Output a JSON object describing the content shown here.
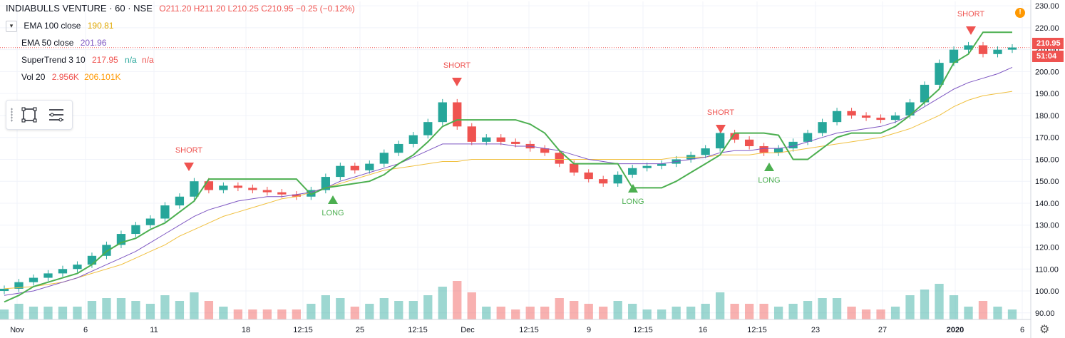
{
  "header": {
    "title": "INDIABULLS VENTURE · 60 · NSE",
    "ohlc": "O211.20 H211.20 L210.25 C210.95 −0.25 (−0.12%)"
  },
  "indicators": [
    {
      "label": "EMA 100 close",
      "value": "190.81"
    },
    {
      "label": "EMA 50 close",
      "value": "201.96"
    },
    {
      "label": "SuperTrend 3 10",
      "value": "217.95",
      "extra1": "n/a",
      "extra2": "n/a"
    },
    {
      "label": "Vol 20",
      "value": "2.956K",
      "value2": "206.101K"
    }
  ],
  "price_axis": {
    "ticks": [
      "230.00",
      "220.00",
      "210.00",
      "200.00",
      "190.00",
      "180.00",
      "170.00",
      "160.00",
      "150.00",
      "140.00",
      "130.00",
      "120.00",
      "110.00",
      "100.00",
      "90.00"
    ],
    "current_price": "210.95",
    "countdown": "51:04"
  },
  "time_axis": {
    "ticks": [
      "Nov",
      "6",
      "11",
      "18",
      "12:15",
      "25",
      "12:15",
      "Dec",
      "12:15",
      "9",
      "12:15",
      "16",
      "12:15",
      "23",
      "27",
      "2020",
      "6"
    ]
  },
  "colors": {
    "up": "#26a69a",
    "down": "#ef5350",
    "ema100": "#f0c040",
    "ema50": "#7e57c2",
    "supertrend_up": "#4caf50",
    "supertrend_down": "#ef5350"
  },
  "chart_data": {
    "type": "line",
    "title": "INDIABULLS VENTURE · 60 · NSE",
    "ylim": [
      87,
      232
    ],
    "x_ticks": [
      "Nov",
      "6",
      "11",
      "18",
      "12:15",
      "25",
      "12:15",
      "Dec",
      "12:15",
      "9",
      "12:15",
      "16",
      "12:15",
      "23",
      "27",
      "2020",
      "6"
    ],
    "y_ticks": [
      230,
      220,
      210,
      200,
      190,
      180,
      170,
      160,
      150,
      140,
      130,
      120,
      110,
      100,
      90
    ],
    "close": [
      101,
      104,
      106,
      108,
      110,
      112,
      116,
      121,
      126,
      130,
      133,
      139,
      143,
      150,
      146,
      148,
      147,
      146,
      145,
      144,
      143,
      146,
      152,
      157,
      155,
      158,
      163,
      167,
      171,
      177,
      186,
      175,
      168,
      170,
      168,
      167,
      165,
      163,
      158,
      154,
      151,
      149,
      153,
      156,
      157,
      158,
      160,
      162,
      165,
      172,
      169,
      166,
      163,
      165,
      168,
      172,
      177,
      182,
      180,
      179,
      178,
      180,
      186,
      194,
      204,
      210,
      212,
      208,
      210,
      211
    ],
    "series": [
      {
        "name": "EMA 100 close",
        "values": [
          101,
          101.5,
          102,
          103,
          104,
          106,
          108,
          110,
          112,
          115,
          118,
          121,
          125,
          128,
          131,
          134,
          136,
          138,
          140,
          142,
          143,
          145,
          147,
          149,
          151,
          153,
          155,
          156,
          157,
          158,
          159,
          159,
          160,
          160,
          160,
          160,
          160,
          160,
          160,
          160,
          160,
          160,
          160,
          160,
          160,
          160,
          161,
          161,
          161,
          162,
          162,
          162,
          163,
          163,
          164,
          165,
          166,
          167,
          168,
          169,
          170,
          172,
          174,
          177,
          180,
          184,
          187,
          189,
          190,
          191
        ]
      },
      {
        "name": "EMA 50 close",
        "values": [
          98,
          99,
          100,
          102,
          104,
          106,
          109,
          112,
          115,
          118,
          122,
          126,
          130,
          134,
          137,
          139,
          141,
          142,
          143,
          143,
          144,
          145,
          147,
          150,
          152,
          154,
          156,
          158,
          161,
          164,
          167,
          167,
          167,
          167,
          167,
          166,
          166,
          165,
          164,
          162,
          160,
          159,
          158,
          158,
          158,
          158,
          159,
          160,
          161,
          163,
          164,
          164,
          165,
          165,
          166,
          168,
          170,
          172,
          173,
          174,
          175,
          177,
          180,
          184,
          188,
          192,
          195,
          197,
          199,
          201.96
        ]
      },
      {
        "name": "SuperTrend 3 10",
        "values": [
          95,
          98,
          102,
          104,
          106,
          108,
          112,
          118,
          122,
          124,
          128,
          131,
          136,
          141,
          151,
          151,
          151,
          151,
          151,
          151,
          151,
          144,
          147,
          148,
          149,
          150,
          153,
          158,
          162,
          168,
          175,
          178,
          178,
          178,
          178,
          178,
          176,
          172,
          164,
          158,
          158,
          158,
          158,
          147,
          147,
          147,
          150,
          154,
          158,
          162,
          172,
          172,
          172,
          171,
          160,
          160,
          165,
          170,
          172,
          172,
          172,
          175,
          180,
          186,
          192,
          204,
          208,
          217.95,
          217.95,
          217.95
        ]
      }
    ],
    "volume_ylabel": "",
    "annotations": [
      {
        "text": "SHORT"
      },
      {
        "text": "LONG"
      },
      {
        "text": "SHORT"
      },
      {
        "text": "LONG"
      },
      {
        "text": "SHORT"
      },
      {
        "text": "LONG"
      },
      {
        "text": "SHORT"
      }
    ],
    "grid": true,
    "legend": "top-left"
  }
}
